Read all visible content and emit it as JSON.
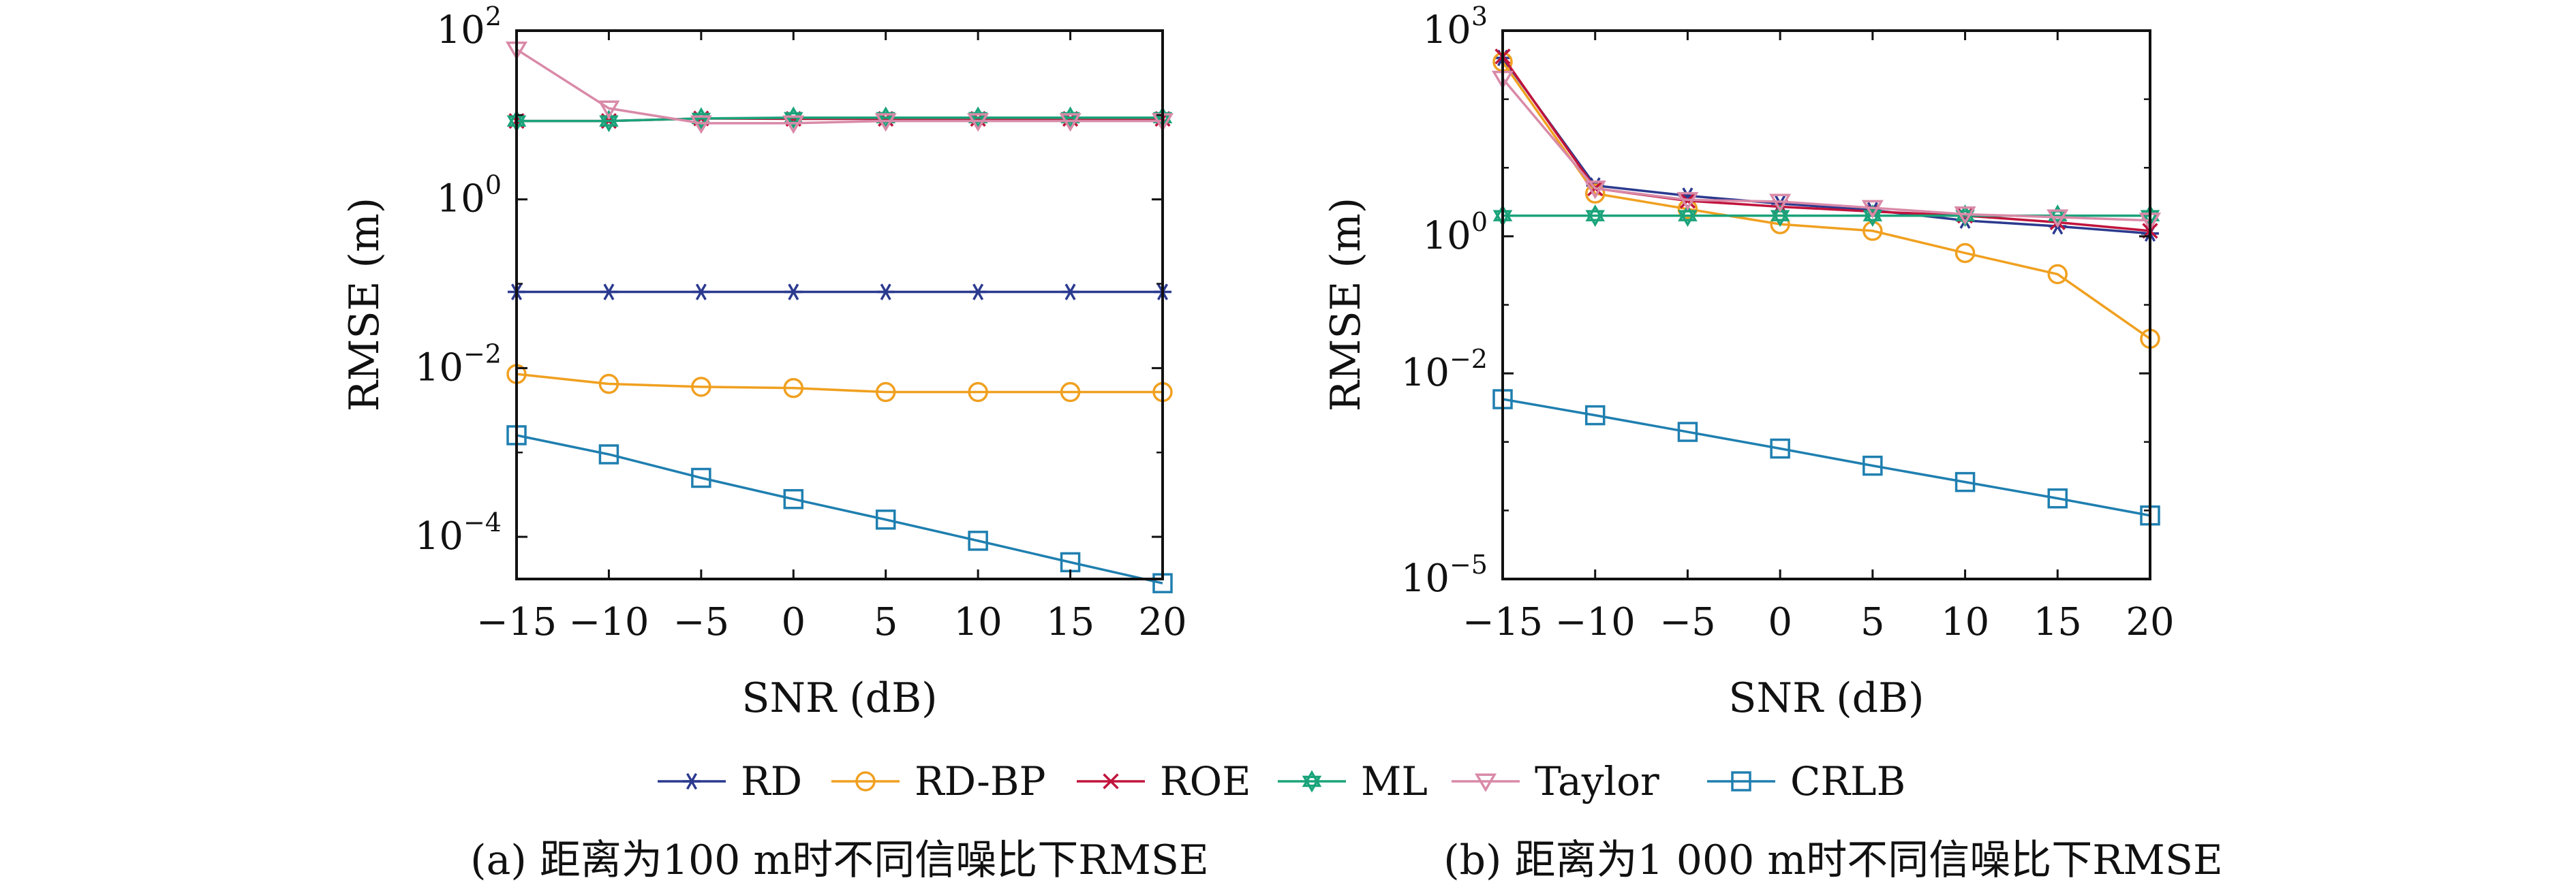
{
  "legend": {
    "placement": "bottom-center",
    "items": [
      {
        "label": "RD",
        "color": "#2b3a8f",
        "marker": "asterisk"
      },
      {
        "label": "RD-BP",
        "color": "#f0a020",
        "marker": "circle"
      },
      {
        "label": "ROE",
        "color": "#c0143c",
        "marker": "x"
      },
      {
        "label": "ML",
        "color": "#1aa37a",
        "marker": "hexagram"
      },
      {
        "label": "Taylor",
        "color": "#d98aa8",
        "marker": "triangle-down"
      },
      {
        "label": "CRLB",
        "color": "#1f7fb0",
        "marker": "square"
      }
    ]
  },
  "chart_data": [
    {
      "type": "line",
      "caption": "(a) 距离为100 m时不同信噪比下RMSE",
      "xlabel": "SNR (dB)",
      "ylabel": "RMSE (m)",
      "xlim": [
        -15,
        20
      ],
      "ylim_exp": [
        -4.5,
        2
      ],
      "yscale": "log",
      "xticks": [
        -15,
        -10,
        -5,
        0,
        5,
        10,
        15,
        20
      ],
      "xticklabels": [
        "−15",
        "−10",
        "−5",
        "0",
        "5",
        "10",
        "15",
        "20"
      ],
      "yticks_exp": [
        -4,
        -2,
        0,
        2
      ],
      "yticklabels": [
        {
          "base": "10",
          "exp": "−4"
        },
        {
          "base": "10",
          "exp": "−2"
        },
        {
          "base": "10",
          "exp": "0"
        },
        {
          "base": "10",
          "exp": "2"
        }
      ],
      "grid": false,
      "x": [
        -15,
        -10,
        -5,
        0,
        5,
        10,
        15,
        20
      ],
      "series": [
        {
          "name": "RD",
          "values": [
            0.08,
            0.08,
            0.08,
            0.08,
            0.08,
            0.08,
            0.08,
            0.08
          ]
        },
        {
          "name": "RD-BP",
          "values": [
            0.0085,
            0.0065,
            0.006,
            0.0058,
            0.0052,
            0.0052,
            0.0052,
            0.0052
          ]
        },
        {
          "name": "ROE",
          "values": [
            8.5,
            8.5,
            9.1,
            9.0,
            9.0,
            9.0,
            9.0,
            9.0
          ]
        },
        {
          "name": "ML",
          "values": [
            8.5,
            8.5,
            9.1,
            9.3,
            9.3,
            9.3,
            9.3,
            9.3
          ]
        },
        {
          "name": "Taylor",
          "values": [
            60,
            12,
            8,
            8,
            8.5,
            8.5,
            8.5,
            8.5
          ]
        },
        {
          "name": "CRLB",
          "values": [
            0.0016,
            0.00095,
            0.0005,
            0.00028,
            0.00016,
            8.98e-05,
            5e-05,
            2.82e-05
          ]
        }
      ]
    },
    {
      "type": "line",
      "caption": "(b) 距离为1 000 m时不同信噪比下RMSE",
      "xlabel": "SNR (dB)",
      "ylabel": "RMSE (m)",
      "xlim": [
        -15,
        20
      ],
      "ylim_exp": [
        -5,
        3
      ],
      "yscale": "log",
      "xticks": [
        -15,
        -10,
        -5,
        0,
        5,
        10,
        15,
        20
      ],
      "xticklabels": [
        "−15",
        "−10",
        "−5",
        "0",
        "5",
        "10",
        "15",
        "20"
      ],
      "yticks_exp": [
        -5,
        -2,
        0,
        3
      ],
      "yticklabels": [
        {
          "base": "10",
          "exp": "−5"
        },
        {
          "base": "10",
          "exp": "−2"
        },
        {
          "base": "10",
          "exp": "0"
        },
        {
          "base": "10",
          "exp": "3"
        }
      ],
      "grid": false,
      "x": [
        -15,
        -10,
        -5,
        0,
        5,
        10,
        15,
        20
      ],
      "series": [
        {
          "name": "RD",
          "values": [
            400,
            5.5,
            3.9,
            3.0,
            2.4,
            1.7,
            1.4,
            1.1
          ]
        },
        {
          "name": "RD-BP",
          "values": [
            350,
            4.2,
            2.5,
            1.5,
            1.2,
            0.57,
            0.28,
            0.032
          ]
        },
        {
          "name": "ROE",
          "values": [
            420,
            5.0,
            3.3,
            2.7,
            2.3,
            2.0,
            1.6,
            1.2
          ]
        },
        {
          "name": "ML",
          "values": [
            2.0,
            2.0,
            2.0,
            2.0,
            2.0,
            2.0,
            2.0,
            2.0
          ]
        },
        {
          "name": "Taylor",
          "values": [
            200,
            5.0,
            3.4,
            3.2,
            2.6,
            2.1,
            1.9,
            1.7
          ]
        },
        {
          "name": "CRLB",
          "values": [
            0.0042,
            0.00245,
            0.0014,
            0.0008,
            0.00045,
            0.00026,
            0.00015,
            8.45e-05
          ]
        }
      ]
    }
  ]
}
